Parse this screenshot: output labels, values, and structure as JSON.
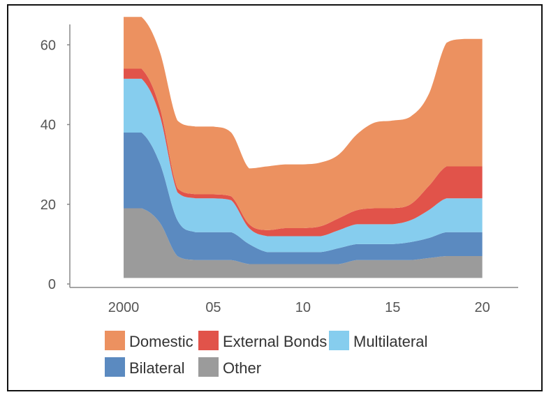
{
  "chart_data": {
    "type": "area",
    "stacked": true,
    "x": [
      2000,
      2001,
      2002,
      2003,
      2004,
      2005,
      2006,
      2007,
      2008,
      2009,
      2010,
      2011,
      2012,
      2013,
      2014,
      2015,
      2016,
      2017,
      2018,
      2019,
      2020
    ],
    "x_tick_values": [
      2000,
      2005,
      2010,
      2015,
      2020
    ],
    "x_tick_labels": [
      "2000",
      "05",
      "10",
      "15",
      "20"
    ],
    "y_ticks": [
      0,
      20,
      40,
      60
    ],
    "ylim": [
      0,
      66
    ],
    "xlim": [
      1997,
      2022
    ],
    "series": [
      {
        "name": "Other",
        "color": "#9b9b9b",
        "values": [
          17.5,
          17.5,
          14,
          5.5,
          4.5,
          4.5,
          4.5,
          3.5,
          3.5,
          3.5,
          3.5,
          3.5,
          3.5,
          4.5,
          4.5,
          4.5,
          4.5,
          5,
          5.5,
          5.5,
          5.5
        ]
      },
      {
        "name": "Bilateral",
        "color": "#5b8ac0",
        "values": [
          19,
          19,
          15,
          9,
          7,
          7,
          7,
          5,
          3,
          3,
          3,
          3,
          4,
          4,
          4,
          4,
          4.5,
          5,
          6,
          6,
          6
        ]
      },
      {
        "name": "Multilateral",
        "color": "#86cdee",
        "values": [
          13.5,
          13.5,
          12,
          7,
          8.5,
          8.5,
          8,
          4,
          4,
          4,
          4,
          4,
          4.5,
          5,
          5,
          5,
          5.5,
          7,
          8.5,
          8.5,
          8.5
        ]
      },
      {
        "name": "External Bonds",
        "color": "#e1534a",
        "values": [
          2.5,
          2.5,
          2,
          1,
          1,
          1,
          1,
          1,
          1.5,
          2,
          2,
          2.5,
          3,
          3.5,
          4,
          4,
          4,
          6,
          8,
          8,
          8
        ]
      },
      {
        "name": "Domestic",
        "color": "#ec9160",
        "values": [
          13,
          13,
          14,
          17,
          17,
          17,
          16,
          14,
          16,
          16,
          16,
          16,
          16,
          19,
          21.5,
          22,
          22,
          23,
          31,
          32,
          32
        ]
      }
    ],
    "legend": {
      "placement": "bottom",
      "rows": [
        [
          "Domestic",
          "External Bonds",
          "Multilateral"
        ],
        [
          "Bilateral",
          "Other"
        ]
      ]
    },
    "title": "",
    "xlabel": "",
    "ylabel": ""
  }
}
